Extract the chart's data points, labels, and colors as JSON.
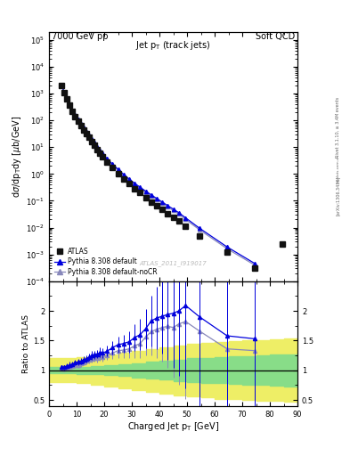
{
  "title_left": "7000 GeV pp",
  "title_right": "Soft QCD",
  "plot_title": "Jet p$_T$ (track jets)",
  "ylabel_main": "dσ/dp$_{T}$dy [μb/GeV]",
  "ylabel_ratio": "Ratio to ATLAS",
  "xlabel": "Charged Jet p$_T$ [GeV]",
  "watermark": "ATLAS_2011_I919017",
  "side_text_top": "Rivet 3.1.10, ≥ 3.4M events",
  "side_text_bottom": "[arXiv:1306.3436]",
  "atlas_x": [
    4.5,
    5.5,
    6.5,
    7.5,
    8.5,
    9.5,
    10.5,
    11.5,
    12.5,
    13.5,
    14.5,
    15.5,
    16.5,
    17.5,
    18.5,
    19.5,
    21.0,
    23.0,
    25.0,
    27.0,
    29.0,
    31.0,
    33.0,
    35.0,
    37.0,
    39.0,
    41.0,
    43.0,
    45.0,
    47.0,
    49.5,
    54.5,
    64.5,
    74.5,
    84.5
  ],
  "atlas_y": [
    2000,
    1100,
    620,
    360,
    220,
    140,
    95,
    65,
    45,
    32,
    23,
    16,
    11.5,
    8.3,
    6.0,
    4.5,
    2.8,
    1.7,
    1.05,
    0.67,
    0.44,
    0.29,
    0.2,
    0.135,
    0.092,
    0.065,
    0.047,
    0.034,
    0.025,
    0.018,
    0.011,
    0.005,
    0.0012,
    0.0003,
    0.0025
  ],
  "atlas_yerr": [
    80,
    44,
    25,
    15,
    9,
    6,
    4,
    2.8,
    2.0,
    1.4,
    1.0,
    0.7,
    0.5,
    0.36,
    0.26,
    0.2,
    0.12,
    0.07,
    0.045,
    0.03,
    0.02,
    0.013,
    0.009,
    0.006,
    0.004,
    0.003,
    0.002,
    0.0015,
    0.0011,
    0.0008,
    0.0005,
    0.0002,
    6e-05,
    2e-05,
    0.0002
  ],
  "py8_x": [
    4.5,
    5.5,
    6.5,
    7.5,
    8.5,
    9.5,
    10.5,
    11.5,
    12.5,
    13.5,
    14.5,
    15.5,
    16.5,
    17.5,
    18.5,
    19.5,
    21.0,
    23.0,
    25.0,
    27.0,
    29.0,
    31.0,
    33.0,
    35.0,
    37.0,
    39.0,
    41.0,
    43.0,
    45.0,
    47.0,
    49.5,
    54.5,
    64.5,
    74.5
  ],
  "py8_y": [
    2100,
    1150,
    665,
    392,
    243,
    158,
    108,
    75,
    53,
    38,
    28,
    20,
    14.5,
    10.5,
    7.8,
    5.8,
    3.7,
    2.35,
    1.5,
    0.97,
    0.65,
    0.45,
    0.32,
    0.23,
    0.168,
    0.122,
    0.09,
    0.066,
    0.049,
    0.036,
    0.023,
    0.0095,
    0.0019,
    0.00046
  ],
  "py8_yerr": [
    20,
    12,
    7,
    4.5,
    3,
    2,
    1.4,
    1.0,
    0.7,
    0.5,
    0.36,
    0.26,
    0.19,
    0.14,
    0.1,
    0.08,
    0.05,
    0.032,
    0.021,
    0.014,
    0.0095,
    0.0066,
    0.0047,
    0.0034,
    0.0025,
    0.0018,
    0.0013,
    0.00096,
    0.00071,
    0.00053,
    0.00034,
    0.00014,
    2.8e-05,
    6.8e-06
  ],
  "nocr_x": [
    4.5,
    5.5,
    6.5,
    7.5,
    8.5,
    9.5,
    10.5,
    11.5,
    12.5,
    13.5,
    14.5,
    15.5,
    16.5,
    17.5,
    18.5,
    19.5,
    21.0,
    23.0,
    25.0,
    27.0,
    29.0,
    31.0,
    33.0,
    35.0,
    37.0,
    39.0,
    41.0,
    43.0,
    45.0,
    47.0,
    49.5,
    54.5,
    64.5,
    74.5
  ],
  "nocr_y": [
    2050,
    1120,
    645,
    380,
    235,
    152,
    104,
    72,
    51,
    37,
    27,
    19,
    13.8,
    10.0,
    7.4,
    5.5,
    3.5,
    2.2,
    1.4,
    0.9,
    0.6,
    0.41,
    0.29,
    0.21,
    0.152,
    0.11,
    0.081,
    0.059,
    0.043,
    0.032,
    0.02,
    0.0083,
    0.00163,
    0.0004
  ],
  "nocr_yerr": [
    20,
    11,
    6.5,
    4.2,
    2.8,
    1.9,
    1.3,
    0.9,
    0.65,
    0.46,
    0.33,
    0.24,
    0.17,
    0.13,
    0.094,
    0.07,
    0.044,
    0.028,
    0.018,
    0.012,
    0.0083,
    0.0057,
    0.004,
    0.0029,
    0.0021,
    0.0015,
    0.0011,
    0.00082,
    0.00059,
    0.00043,
    0.00027,
    0.000105,
    2e-05,
    4.8e-06
  ],
  "ratio_blue_x": [
    4.5,
    5.5,
    6.5,
    7.5,
    8.5,
    9.5,
    10.5,
    11.5,
    12.5,
    13.5,
    14.5,
    15.5,
    16.5,
    17.5,
    18.5,
    19.5,
    21.0,
    23.0,
    25.0,
    27.0,
    29.0,
    31.0,
    33.0,
    35.0,
    37.0,
    39.0,
    41.0,
    43.0,
    45.0,
    47.0,
    49.5,
    54.5,
    64.5,
    74.5
  ],
  "ratio_blue_y": [
    1.05,
    1.05,
    1.07,
    1.09,
    1.1,
    1.13,
    1.14,
    1.15,
    1.18,
    1.19,
    1.22,
    1.25,
    1.26,
    1.27,
    1.3,
    1.29,
    1.32,
    1.38,
    1.43,
    1.45,
    1.48,
    1.55,
    1.6,
    1.7,
    1.83,
    1.88,
    1.91,
    1.94,
    1.96,
    2.0,
    2.09,
    1.9,
    1.58,
    1.53
  ],
  "ratio_blue_yerr": [
    0.04,
    0.04,
    0.04,
    0.05,
    0.05,
    0.05,
    0.05,
    0.05,
    0.06,
    0.06,
    0.06,
    0.07,
    0.07,
    0.07,
    0.08,
    0.08,
    0.09,
    0.11,
    0.13,
    0.15,
    0.18,
    0.22,
    0.26,
    0.33,
    0.43,
    0.52,
    0.63,
    0.76,
    0.92,
    1.1,
    1.4,
    1.8,
    2.5,
    3.8
  ],
  "ratio_gray_x": [
    4.5,
    5.5,
    6.5,
    7.5,
    8.5,
    9.5,
    10.5,
    11.5,
    12.5,
    13.5,
    14.5,
    15.5,
    16.5,
    17.5,
    18.5,
    19.5,
    21.0,
    23.0,
    25.0,
    27.0,
    29.0,
    31.0,
    33.0,
    35.0,
    37.0,
    39.0,
    41.0,
    43.0,
    45.0,
    47.0,
    49.5,
    54.5,
    64.5,
    74.5
  ],
  "ratio_gray_y": [
    1.03,
    1.02,
    1.04,
    1.06,
    1.07,
    1.09,
    1.09,
    1.11,
    1.13,
    1.16,
    1.17,
    1.19,
    1.2,
    1.2,
    1.23,
    1.22,
    1.25,
    1.29,
    1.33,
    1.34,
    1.36,
    1.41,
    1.45,
    1.56,
    1.65,
    1.69,
    1.72,
    1.74,
    1.72,
    1.78,
    1.82,
    1.66,
    1.36,
    1.33
  ],
  "ratio_gray_yerr": [
    0.04,
    0.04,
    0.04,
    0.04,
    0.05,
    0.05,
    0.05,
    0.05,
    0.05,
    0.06,
    0.06,
    0.06,
    0.06,
    0.07,
    0.07,
    0.07,
    0.08,
    0.1,
    0.12,
    0.14,
    0.16,
    0.2,
    0.24,
    0.31,
    0.4,
    0.48,
    0.58,
    0.7,
    0.85,
    1.02,
    1.3,
    1.65,
    2.3,
    3.5
  ],
  "green_band_x": [
    0,
    5,
    10,
    15,
    20,
    25,
    30,
    35,
    40,
    45,
    50,
    55,
    60,
    65,
    70,
    75,
    80,
    85,
    90
  ],
  "green_band_lo": [
    0.95,
    0.95,
    0.94,
    0.93,
    0.92,
    0.9,
    0.88,
    0.86,
    0.84,
    0.82,
    0.8,
    0.79,
    0.78,
    0.77,
    0.76,
    0.75,
    0.74,
    0.73,
    0.72
  ],
  "green_band_hi": [
    1.05,
    1.05,
    1.06,
    1.07,
    1.08,
    1.1,
    1.12,
    1.14,
    1.16,
    1.18,
    1.2,
    1.21,
    1.22,
    1.23,
    1.24,
    1.25,
    1.26,
    1.27,
    1.28
  ],
  "yellow_band_lo": [
    0.8,
    0.8,
    0.78,
    0.76,
    0.73,
    0.7,
    0.67,
    0.64,
    0.61,
    0.58,
    0.56,
    0.54,
    0.52,
    0.51,
    0.5,
    0.49,
    0.48,
    0.47,
    0.46
  ],
  "yellow_band_hi": [
    1.2,
    1.2,
    1.22,
    1.24,
    1.27,
    1.3,
    1.33,
    1.36,
    1.39,
    1.42,
    1.44,
    1.46,
    1.48,
    1.49,
    1.5,
    1.51,
    1.52,
    1.53,
    1.54
  ],
  "blue_color": "#0000dd",
  "gray_color": "#8888bb",
  "atlas_color": "#111111",
  "green_color": "#88dd88",
  "yellow_color": "#eeee66",
  "background_color": "#ffffff",
  "xlim": [
    0,
    90
  ],
  "ylim_main": [
    0.0001,
    200000.0
  ],
  "ylim_ratio": [
    0.4,
    2.5
  ],
  "ratio_yticks": [
    0.5,
    1.0,
    1.5,
    2.0
  ],
  "ratio_ytick_labels": [
    "0.5",
    "1",
    "1.5",
    "2"
  ]
}
